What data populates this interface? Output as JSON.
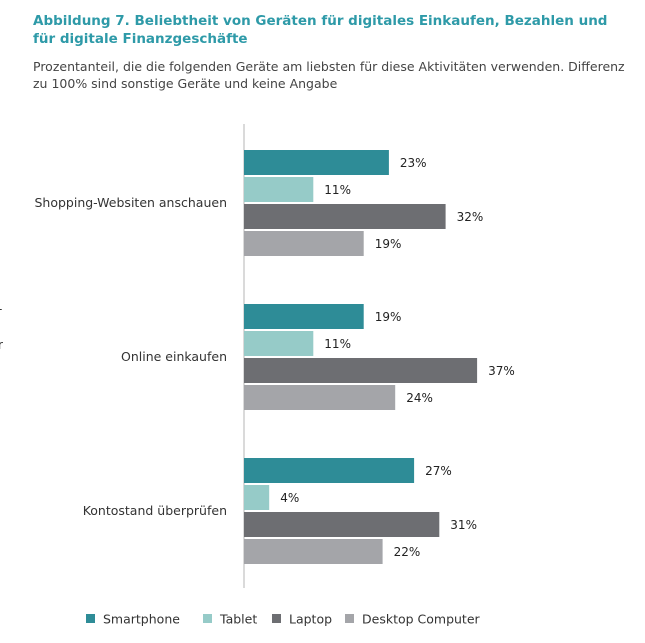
{
  "header": {
    "title": "Abbildung 7. Beliebtheit von Geräten für digitales Einkaufen, Bezahlen und für digitale Finanzgeschäfte",
    "subtitle": "Prozentanteil, die die folgenden Geräte am liebsten für diese Aktivitäten verwenden. Differenz zu 100% sind sonstige Geräte und keine Angabe"
  },
  "stray_text": [
    "-",
    "r"
  ],
  "chart_data": {
    "type": "bar",
    "orientation": "horizontal",
    "title": "Abbildung 7. Beliebtheit von Geräten für digitales Einkaufen, Bezahlen und für digitale Finanzgeschäfte",
    "subtitle": "Prozentanteil, die die folgenden Geräte am liebsten für diese Aktivitäten verwenden. Differenz zu 100% sind sonstige Geräte und keine Angabe",
    "xlabel": "",
    "ylabel": "",
    "value_suffix": "%",
    "grid": false,
    "legend_position": "bottom",
    "categories": [
      "Shopping-Websiten anschauen",
      "Online einkaufen",
      "Kontostand überprüfen"
    ],
    "series": [
      {
        "name": "Smartphone",
        "color": "#2e8c97",
        "values": [
          23,
          19,
          27
        ]
      },
      {
        "name": "Tablet",
        "color": "#96cbc8",
        "values": [
          11,
          11,
          4
        ]
      },
      {
        "name": "Laptop",
        "color": "#6d6e72",
        "values": [
          32,
          37,
          31
        ]
      },
      {
        "name": "Desktop Computer",
        "color": "#a4a5a9",
        "values": [
          19,
          24,
          22
        ]
      }
    ]
  }
}
